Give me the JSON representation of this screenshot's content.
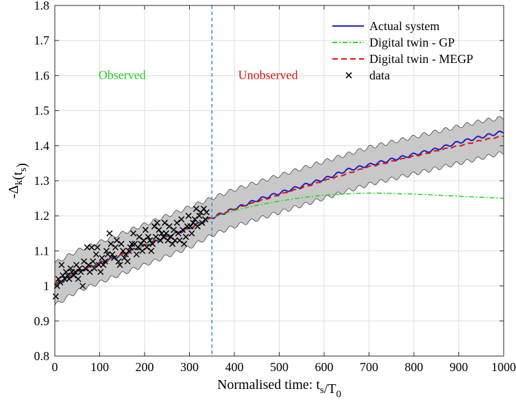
{
  "chart_data": {
    "type": "line",
    "xlabel": "Normalised time: t_s/T_0",
    "ylabel": "-Δ_k(t_s)",
    "xlim": [
      0,
      1000
    ],
    "ylim": [
      0.8,
      1.8
    ],
    "xticks": [
      0,
      100,
      200,
      300,
      400,
      500,
      600,
      700,
      800,
      900,
      1000
    ],
    "yticks": [
      0.8,
      0.9,
      1.0,
      1.1,
      1.2,
      1.3,
      1.4,
      1.5,
      1.6,
      1.7,
      1.8
    ],
    "xtick_labels": [
      "0",
      "100",
      "200",
      "300",
      "400",
      "500",
      "600",
      "700",
      "800",
      "900",
      "1000"
    ],
    "ytick_labels": [
      "0.8",
      "0.9",
      "1",
      "1.1",
      "1.2",
      "1.3",
      "1.4",
      "1.5",
      "1.6",
      "1.7",
      "1.8"
    ],
    "grid": true,
    "legend_position": "top-right",
    "colors": {
      "actual": "#1f1fbf",
      "gp": "#22dd22",
      "megp": "#dd1111",
      "band_fill": "#c8c8c8",
      "vline": "#2a8fd0"
    },
    "legend": [
      {
        "label": "Actual system",
        "style": "solid",
        "color": "#1f1fbf"
      },
      {
        "label": "Digital twin - GP",
        "style": "dashdot",
        "color": "#22dd22"
      },
      {
        "label": "Digital twin - MEGP",
        "style": "dashed",
        "color": "#dd1111"
      },
      {
        "label": "data",
        "style": "marker-x",
        "color": "#000000"
      }
    ],
    "annotations": {
      "observed": {
        "text": "Observed",
        "x": 150,
        "y": 1.59,
        "color": "#22cc22"
      },
      "unobserved": {
        "text": "Unobserved",
        "x": 475,
        "y": 1.59,
        "color": "#dd1111"
      },
      "boundary_x": 350
    },
    "series": [
      {
        "name": "Actual system",
        "x": [
          0,
          50,
          100,
          150,
          200,
          250,
          300,
          350,
          400,
          450,
          500,
          550,
          600,
          650,
          700,
          750,
          800,
          850,
          900,
          950,
          1000
        ],
        "values": [
          1.0,
          1.04,
          1.065,
          1.09,
          1.115,
          1.14,
          1.165,
          1.195,
          1.22,
          1.245,
          1.265,
          1.285,
          1.305,
          1.33,
          1.345,
          1.36,
          1.375,
          1.39,
          1.41,
          1.425,
          1.44
        ]
      },
      {
        "name": "Digital twin - GP",
        "x": [
          0,
          50,
          100,
          150,
          200,
          250,
          300,
          350,
          400,
          450,
          500,
          550,
          600,
          650,
          700,
          750,
          800,
          850,
          900,
          950,
          1000
        ],
        "values": [
          1.0,
          1.04,
          1.065,
          1.09,
          1.115,
          1.14,
          1.165,
          1.195,
          1.215,
          1.23,
          1.242,
          1.252,
          1.259,
          1.263,
          1.265,
          1.264,
          1.262,
          1.259,
          1.256,
          1.253,
          1.25
        ]
      },
      {
        "name": "Digital twin - MEGP",
        "x": [
          0,
          50,
          100,
          150,
          200,
          250,
          300,
          350,
          400,
          450,
          500,
          550,
          600,
          650,
          700,
          750,
          800,
          850,
          900,
          950,
          1000
        ],
        "values": [
          1.005,
          1.04,
          1.065,
          1.09,
          1.115,
          1.14,
          1.165,
          1.195,
          1.22,
          1.24,
          1.26,
          1.28,
          1.3,
          1.32,
          1.34,
          1.355,
          1.37,
          1.385,
          1.4,
          1.415,
          1.428
        ]
      }
    ],
    "band": {
      "x": [
        0,
        50,
        100,
        150,
        200,
        250,
        300,
        350,
        400,
        450,
        500,
        550,
        600,
        650,
        700,
        750,
        800,
        850,
        900,
        950,
        1000
      ],
      "lower": [
        0.945,
        0.985,
        1.01,
        1.035,
        1.06,
        1.085,
        1.11,
        1.145,
        1.17,
        1.19,
        1.21,
        1.23,
        1.25,
        1.27,
        1.29,
        1.305,
        1.32,
        1.335,
        1.35,
        1.365,
        1.38
      ],
      "upper": [
        1.065,
        1.1,
        1.125,
        1.15,
        1.175,
        1.2,
        1.225,
        1.25,
        1.275,
        1.295,
        1.315,
        1.335,
        1.355,
        1.375,
        1.395,
        1.41,
        1.425,
        1.44,
        1.455,
        1.47,
        1.48
      ]
    },
    "scatter": {
      "name": "data",
      "points": [
        [
          2,
          0.97
        ],
        [
          5,
          1.0
        ],
        [
          8,
          1.02
        ],
        [
          12,
          1.01
        ],
        [
          15,
          1.06
        ],
        [
          18,
          1.03
        ],
        [
          22,
          1.02
        ],
        [
          25,
          1.04
        ],
        [
          28,
          1.03
        ],
        [
          32,
          1.02
        ],
        [
          35,
          1.05
        ],
        [
          38,
          1.04
        ],
        [
          42,
          1.03
        ],
        [
          45,
          1.04
        ],
        [
          48,
          1.06
        ],
        [
          52,
          1.02
        ],
        [
          55,
          1.05
        ],
        [
          58,
          1.04
        ],
        [
          62,
          1.0
        ],
        [
          65,
          1.07
        ],
        [
          68,
          1.05
        ],
        [
          72,
          1.11
        ],
        [
          75,
          1.06
        ],
        [
          78,
          1.04
        ],
        [
          82,
          1.11
        ],
        [
          85,
          1.07
        ],
        [
          88,
          1.05
        ],
        [
          92,
          1.09
        ],
        [
          95,
          1.11
        ],
        [
          98,
          1.06
        ],
        [
          102,
          1.04
        ],
        [
          105,
          1.08
        ],
        [
          108,
          1.06
        ],
        [
          112,
          1.07
        ],
        [
          115,
          1.1
        ],
        [
          118,
          1.09
        ],
        [
          122,
          1.15
        ],
        [
          125,
          1.12
        ],
        [
          128,
          1.09
        ],
        [
          132,
          1.08
        ],
        [
          135,
          1.11
        ],
        [
          138,
          1.13
        ],
        [
          142,
          1.07
        ],
        [
          145,
          1.06
        ],
        [
          148,
          1.12
        ],
        [
          152,
          1.1
        ],
        [
          155,
          1.08
        ],
        [
          158,
          1.09
        ],
        [
          162,
          1.07
        ],
        [
          165,
          1.1
        ],
        [
          168,
          1.11
        ],
        [
          172,
          1.12
        ],
        [
          175,
          1.15
        ],
        [
          178,
          1.12
        ],
        [
          182,
          1.09
        ],
        [
          185,
          1.11
        ],
        [
          188,
          1.14
        ],
        [
          192,
          1.12
        ],
        [
          195,
          1.1
        ],
        [
          198,
          1.13
        ],
        [
          202,
          1.16
        ],
        [
          205,
          1.11
        ],
        [
          208,
          1.14
        ],
        [
          212,
          1.13
        ],
        [
          215,
          1.1
        ],
        [
          218,
          1.12
        ],
        [
          222,
          1.17
        ],
        [
          225,
          1.14
        ],
        [
          228,
          1.18
        ],
        [
          232,
          1.16
        ],
        [
          235,
          1.13
        ],
        [
          238,
          1.15
        ],
        [
          242,
          1.14
        ],
        [
          245,
          1.18
        ],
        [
          248,
          1.15
        ],
        [
          252,
          1.13
        ],
        [
          255,
          1.17
        ],
        [
          258,
          1.14
        ],
        [
          262,
          1.12
        ],
        [
          265,
          1.16
        ],
        [
          268,
          1.13
        ],
        [
          272,
          1.18
        ],
        [
          275,
          1.15
        ],
        [
          278,
          1.13
        ],
        [
          282,
          1.19
        ],
        [
          285,
          1.16
        ],
        [
          288,
          1.12
        ],
        [
          292,
          1.14
        ],
        [
          295,
          1.17
        ],
        [
          298,
          1.2
        ],
        [
          302,
          1.17
        ],
        [
          305,
          1.15
        ],
        [
          308,
          1.18
        ],
        [
          312,
          1.19
        ],
        [
          315,
          1.22
        ],
        [
          318,
          1.17
        ],
        [
          322,
          1.2
        ],
        [
          325,
          1.21
        ],
        [
          328,
          1.18
        ],
        [
          332,
          1.22
        ],
        [
          335,
          1.19
        ],
        [
          338,
          1.21
        ]
      ]
    }
  }
}
